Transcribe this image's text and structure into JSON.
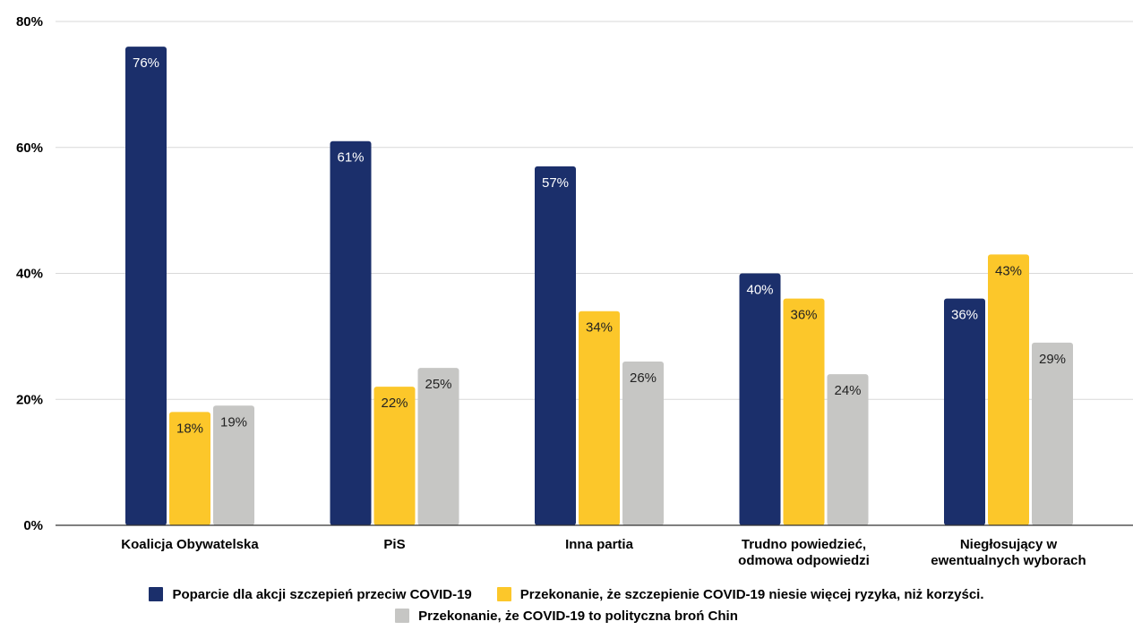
{
  "chart_data": {
    "type": "bar",
    "categories": [
      [
        "Koalicja Obywatelska"
      ],
      [
        "PiS"
      ],
      [
        "Inna partia"
      ],
      [
        "Trudno powiedzieć,",
        "odmowa odpowiedzi"
      ],
      [
        "Niegłosujący w",
        "ewentualnych wyborach"
      ]
    ],
    "series": [
      {
        "name": "Poparcie dla akcji szczepień przeciw COVID-19",
        "color": "#1b2f6b",
        "label_color": "#ffffff",
        "values": [
          76,
          61,
          57,
          40,
          36
        ],
        "labels": [
          "76%",
          "61%",
          "57%",
          "40%",
          "36%"
        ]
      },
      {
        "name": "Przekonanie, że szczepienie COVID-19 niesie więcej ryzyka, niż korzyści.",
        "color": "#fcc72a",
        "label_color": "#222222",
        "values": [
          18,
          22,
          34,
          36,
          43
        ],
        "labels": [
          "18%",
          "22%",
          "34%",
          "36%",
          "43%"
        ]
      },
      {
        "name": "Przekonanie, że COVID-19 to polityczna broń Chin",
        "color": "#c6c6c4",
        "label_color": "#222222",
        "values": [
          19,
          25,
          26,
          24,
          29
        ],
        "labels": [
          "19%",
          "25%",
          "26%",
          "24%",
          "29%"
        ]
      }
    ],
    "ylim": [
      0,
      80
    ],
    "yticks": [
      0,
      20,
      40,
      60,
      80
    ],
    "ytick_labels": [
      "0%",
      "20%",
      "40%",
      "60%",
      "80%"
    ],
    "grid": true,
    "legend_position": "bottom"
  }
}
